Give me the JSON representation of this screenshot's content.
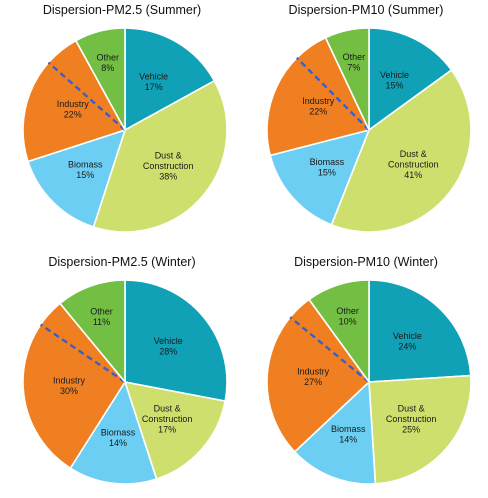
{
  "chart_data": [
    {
      "type": "pie",
      "title": "Dispersion-PM2.5 (Summer)",
      "slices": [
        {
          "label": "Vehicle",
          "label_lines": [
            "Vehicle"
          ],
          "value": 17,
          "pct": "17%",
          "color": "#10a1b7"
        },
        {
          "label": "Dust & Construction",
          "label_lines": [
            "Dust &",
            "Construction"
          ],
          "value": 38,
          "pct": "38%",
          "color": "#cfdf6e"
        },
        {
          "label": "Biomass",
          "label_lines": [
            "Biomass"
          ],
          "value": 15,
          "pct": "15%",
          "color": "#6dcef3"
        },
        {
          "label": "Industry",
          "label_lines": [
            "Industry"
          ],
          "value": 22,
          "pct": "22%",
          "color": "#f07f22"
        },
        {
          "label": "Other",
          "label_lines": [
            "Other"
          ],
          "value": 8,
          "pct": "8%",
          "color": "#72bf44"
        }
      ],
      "dashed_split_in": "Industry",
      "dashed_split_fraction": 0.25,
      "dashed_color": "#3b5fc4"
    },
    {
      "type": "pie",
      "title": "Dispersion-PM10 (Summer)",
      "slices": [
        {
          "label": "Vehicle",
          "label_lines": [
            "Vehicle"
          ],
          "value": 15,
          "pct": "15%",
          "color": "#10a1b7"
        },
        {
          "label": "Dust & Construction",
          "label_lines": [
            "Dust &",
            "Construction"
          ],
          "value": 41,
          "pct": "41%",
          "color": "#cfdf6e"
        },
        {
          "label": "Biomass",
          "label_lines": [
            "Biomass"
          ],
          "value": 15,
          "pct": "15%",
          "color": "#6dcef3"
        },
        {
          "label": "Industry",
          "label_lines": [
            "Industry"
          ],
          "value": 22,
          "pct": "22%",
          "color": "#f07f22"
        },
        {
          "label": "Other",
          "label_lines": [
            "Other"
          ],
          "value": 7,
          "pct": "7%",
          "color": "#72bf44"
        }
      ],
      "dashed_split_in": "Industry",
      "dashed_split_fraction": 0.25,
      "dashed_color": "#3b5fc4"
    },
    {
      "type": "pie",
      "title": "Dispersion-PM2.5 (Winter)",
      "slices": [
        {
          "label": "Vehicle",
          "label_lines": [
            "Vehicle"
          ],
          "value": 28,
          "pct": "28%",
          "color": "#10a1b7"
        },
        {
          "label": "Dust & Construction",
          "label_lines": [
            "Dust &",
            "Construction"
          ],
          "value": 17,
          "pct": "17%",
          "color": "#cfdf6e"
        },
        {
          "label": "Biomass",
          "label_lines": [
            "Biomass"
          ],
          "value": 14,
          "pct": "14%",
          "color": "#6dcef3"
        },
        {
          "label": "Industry",
          "label_lines": [
            "Industry"
          ],
          "value": 30,
          "pct": "30%",
          "color": "#f07f22"
        },
        {
          "label": "Other",
          "label_lines": [
            "Other"
          ],
          "value": 11,
          "pct": "11%",
          "color": "#72bf44"
        }
      ],
      "dashed_split_in": "Industry",
      "dashed_split_fraction": 0.15,
      "dashed_color": "#3b5fc4"
    },
    {
      "type": "pie",
      "title": "Dispersion-PM10 (Winter)",
      "slices": [
        {
          "label": "Vehicle",
          "label_lines": [
            "Vehicle"
          ],
          "value": 24,
          "pct": "24%",
          "color": "#10a1b7"
        },
        {
          "label": "Dust & Construction",
          "label_lines": [
            "Dust &",
            "Construction"
          ],
          "value": 25,
          "pct": "25%",
          "color": "#cfdf6e"
        },
        {
          "label": "Biomass",
          "label_lines": [
            "Biomass"
          ],
          "value": 14,
          "pct": "14%",
          "color": "#6dcef3"
        },
        {
          "label": "Industry",
          "label_lines": [
            "Industry"
          ],
          "value": 27,
          "pct": "27%",
          "color": "#f07f22"
        },
        {
          "label": "Other",
          "label_lines": [
            "Other"
          ],
          "value": 10,
          "pct": "10%",
          "color": "#72bf44"
        }
      ],
      "dashed_split_in": "Industry",
      "dashed_split_fraction": 0.15,
      "dashed_color": "#3b5fc4"
    }
  ]
}
